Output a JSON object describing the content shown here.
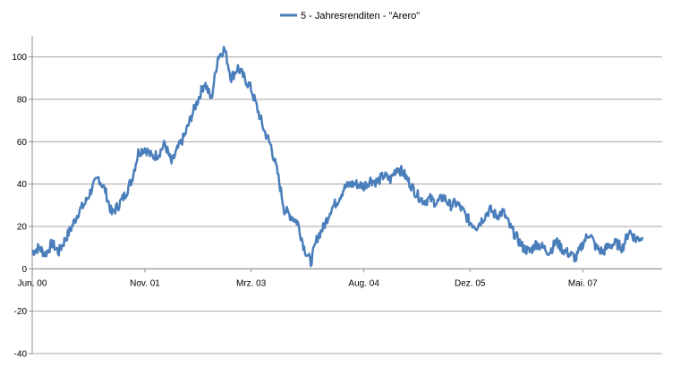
{
  "chart_data": {
    "type": "line",
    "title": "",
    "xlabel": "",
    "ylabel": "",
    "ylim": [
      -40,
      110
    ],
    "yticks": [
      -40,
      -20,
      0,
      20,
      40,
      60,
      80,
      100
    ],
    "x_tick_labels": [
      "Jun. 00",
      "Nov. 01",
      "Mrz. 03",
      "Aug. 04",
      "Dez. 05",
      "Mai. 07"
    ],
    "x_tick_index": [
      0,
      17,
      33,
      50,
      66,
      83
    ],
    "grid": true,
    "legend_position": "top-center",
    "series": [
      {
        "name": "5 - Jahresrenditen - \"Arero\"",
        "color": "#4a7ebb",
        "x": [
          "2000-06",
          "2000-07",
          "2000-08",
          "2000-09",
          "2000-10",
          "2000-11",
          "2000-12",
          "2001-01",
          "2001-02",
          "2001-03",
          "2001-04",
          "2001-05",
          "2001-06",
          "2001-07",
          "2001-08",
          "2001-09",
          "2001-10",
          "2001-11",
          "2001-12",
          "2002-01",
          "2002-02",
          "2002-03",
          "2002-04",
          "2002-05",
          "2002-06",
          "2002-07",
          "2002-08",
          "2002-09",
          "2002-10",
          "2002-11",
          "2002-12",
          "2003-01",
          "2003-02",
          "2003-03",
          "2003-04",
          "2003-05",
          "2003-06",
          "2003-07",
          "2003-08",
          "2003-09",
          "2003-10",
          "2003-11",
          "2003-12",
          "2004-01",
          "2004-02",
          "2004-03",
          "2004-04",
          "2004-05",
          "2004-06",
          "2004-07",
          "2004-08",
          "2004-09",
          "2004-10",
          "2004-11",
          "2004-12",
          "2005-01",
          "2005-02",
          "2005-03",
          "2005-04",
          "2005-05",
          "2005-06",
          "2005-07",
          "2005-08",
          "2005-09",
          "2005-10",
          "2005-11",
          "2005-12",
          "2006-01",
          "2006-02",
          "2006-03",
          "2006-04",
          "2006-05",
          "2006-06",
          "2006-07",
          "2006-08",
          "2006-09",
          "2006-10",
          "2006-11",
          "2006-12",
          "2007-01",
          "2007-02",
          "2007-03",
          "2007-04",
          "2007-05",
          "2007-06",
          "2007-07",
          "2007-08",
          "2007-09",
          "2007-10",
          "2007-11",
          "2007-12",
          "2008-01",
          "2008-02"
        ],
        "values": [
          8,
          10,
          7,
          12,
          8,
          14,
          20,
          27,
          31,
          38,
          43,
          37,
          26,
          30,
          35,
          42,
          55,
          57,
          53,
          54,
          59,
          50,
          57,
          63,
          72,
          80,
          88,
          80,
          100,
          104,
          90,
          95,
          90,
          85,
          75,
          65,
          58,
          45,
          28,
          25,
          22,
          10,
          3,
          15,
          20,
          28,
          32,
          38,
          40,
          40,
          39,
          42,
          41,
          44,
          42,
          48,
          45,
          40,
          35,
          32,
          33,
          31,
          34,
          30,
          31,
          27,
          22,
          20,
          24,
          28,
          25,
          27,
          20,
          15,
          10,
          8,
          12,
          10,
          8,
          13,
          9,
          7,
          5,
          12,
          17,
          10,
          8,
          11,
          12,
          10,
          18,
          14,
          15
        ]
      }
    ]
  }
}
